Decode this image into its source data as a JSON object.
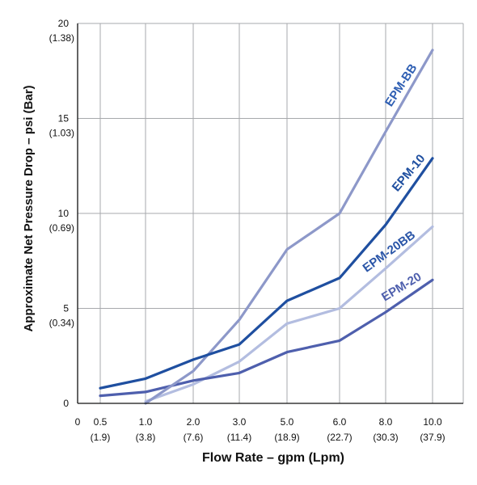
{
  "chart_data": {
    "type": "line",
    "title": "",
    "xlabel": "Flow Rate – gpm (Lpm)",
    "ylabel": "Approximate Net Pressure Drop – psi (Bar)",
    "x_ticks": [
      {
        "label": "0",
        "sub": ""
      },
      {
        "label": "0.5",
        "sub": "(1.9)"
      },
      {
        "label": "1.0",
        "sub": "(3.8)"
      },
      {
        "label": "2.0",
        "sub": "(7.6)"
      },
      {
        "label": "3.0",
        "sub": "(11.4)"
      },
      {
        "label": "5.0",
        "sub": "(18.9)"
      },
      {
        "label": "6.0",
        "sub": "(22.7)"
      },
      {
        "label": "8.0",
        "sub": "(30.3)"
      },
      {
        "label": "10.0",
        "sub": "(37.9)"
      }
    ],
    "y_ticks": [
      {
        "value": 0,
        "label": "0",
        "sub": ""
      },
      {
        "value": 5,
        "label": "5",
        "sub": "(0.34)"
      },
      {
        "value": 10,
        "label": "10",
        "sub": "(0.69)"
      },
      {
        "value": 15,
        "label": "15",
        "sub": "(1.03)"
      },
      {
        "value": 20,
        "label": "20",
        "sub": "(1.38)"
      }
    ],
    "ylim": [
      0,
      20
    ],
    "grid": true,
    "series": [
      {
        "name": "EPM-BB",
        "color": "#8d98c9",
        "x": [
          "1.0",
          "2.0",
          "3.0",
          "5.0",
          "6.0",
          "8.0",
          "10.0"
        ],
        "values": [
          0.0,
          1.7,
          4.4,
          8.1,
          10.0,
          14.3,
          18.6
        ]
      },
      {
        "name": "EPM-10",
        "color": "#1f4fa0",
        "x": [
          "0.5",
          "1.0",
          "2.0",
          "3.0",
          "5.0",
          "6.0",
          "8.0",
          "10.0"
        ],
        "values": [
          0.8,
          1.3,
          2.3,
          3.1,
          5.4,
          6.6,
          9.4,
          12.9
        ]
      },
      {
        "name": "EPM-20BB",
        "color": "#b3bde0",
        "x": [
          "1.0",
          "2.0",
          "3.0",
          "5.0",
          "6.0",
          "8.0",
          "10.0"
        ],
        "values": [
          0.1,
          1.0,
          2.2,
          4.2,
          5.0,
          7.1,
          9.3
        ]
      },
      {
        "name": "EPM-20",
        "color": "#4e5fad",
        "x": [
          "0.5",
          "1.0",
          "2.0",
          "3.0",
          "5.0",
          "6.0",
          "8.0",
          "10.0"
        ],
        "values": [
          0.4,
          0.6,
          1.2,
          1.6,
          2.7,
          3.3,
          4.8,
          6.5
        ]
      }
    ]
  }
}
